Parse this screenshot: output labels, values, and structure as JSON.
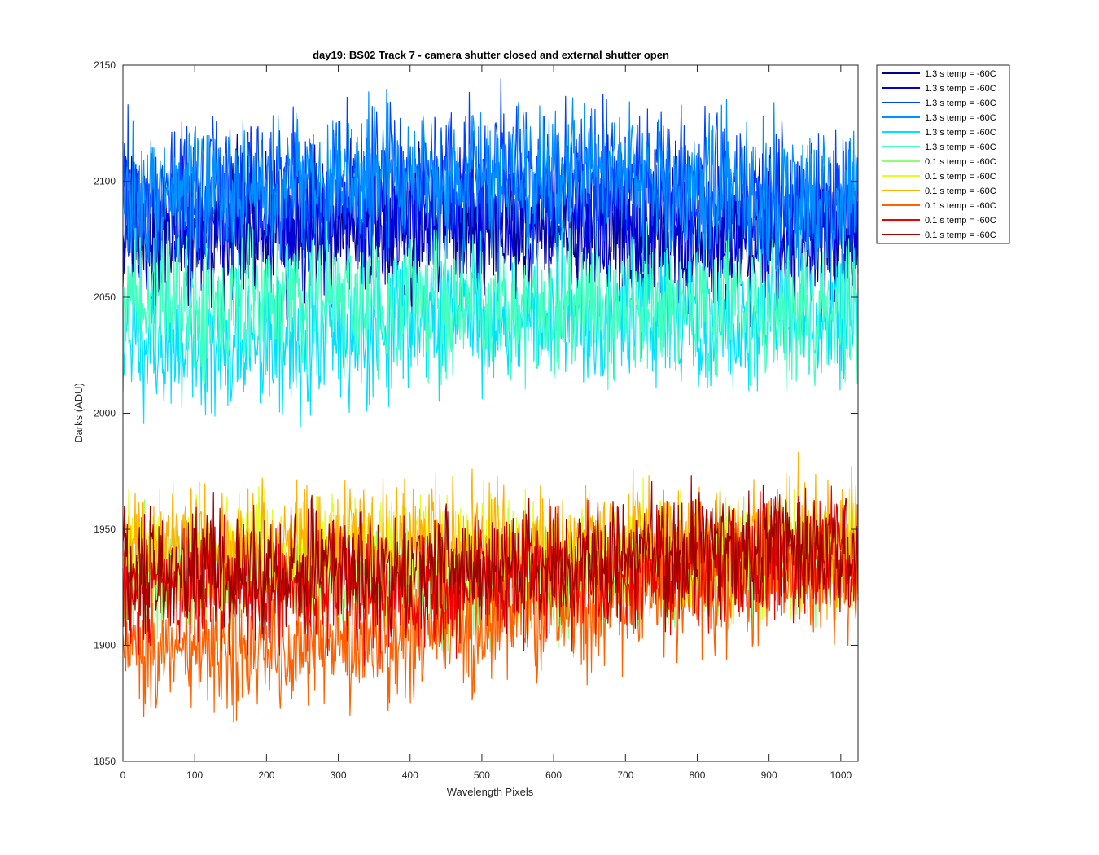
{
  "chart_data": {
    "type": "line",
    "title": "day19: BS02  Track 7 - camera shutter closed and external shutter open",
    "xlabel": "Wavelength Pixels",
    "ylabel": "Darks (ADU)",
    "xlim": [
      0,
      1024
    ],
    "ylim": [
      1850,
      2150
    ],
    "xticks": [
      0,
      100,
      200,
      300,
      400,
      500,
      600,
      700,
      800,
      900,
      1000
    ],
    "yticks": [
      1850,
      1900,
      1950,
      2000,
      2050,
      2100,
      2150
    ],
    "grid": false,
    "legend_position": "outside-top-right",
    "n_points": 1024,
    "series": [
      {
        "name": "1.3 s temp = -60C",
        "color": "#00008F",
        "mean": 2075,
        "amplitude": 45,
        "trend": [
          2075,
          2080,
          2082,
          2078,
          2076,
          2074
        ]
      },
      {
        "name": "1.3 s temp = -60C",
        "color": "#0000DF",
        "mean": 2080,
        "amplitude": 45,
        "trend": [
          2078,
          2084,
          2086,
          2086,
          2080,
          2078
        ]
      },
      {
        "name": "1.3 s temp = -60C",
        "color": "#0040FF",
        "mean": 2090,
        "amplitude": 45,
        "trend": [
          2090,
          2096,
          2100,
          2104,
          2096,
          2088
        ]
      },
      {
        "name": "1.3 s temp = -60C",
        "color": "#0090FF",
        "mean": 2092,
        "amplitude": 45,
        "trend": [
          2092,
          2098,
          2102,
          2104,
          2096,
          2090
        ]
      },
      {
        "name": "1.3 s temp = -60C",
        "color": "#00E0FF",
        "mean": 2040,
        "amplitude": 45,
        "trend": [
          2030,
          2028,
          2040,
          2044,
          2040,
          2038
        ]
      },
      {
        "name": "1.3 s temp = -60C",
        "color": "#40FFBF",
        "mean": 2045,
        "amplitude": 45,
        "trend": [
          2050,
          2052,
          2046,
          2044,
          2046,
          2046
        ]
      },
      {
        "name": "0.1 s temp = -60C",
        "color": "#90FF70",
        "mean": 1930,
        "amplitude": 38,
        "trend": [
          1930,
          1928,
          1924,
          1928,
          1934,
          1938
        ]
      },
      {
        "name": "0.1 s temp = -60C",
        "color": "#E0FF20",
        "mean": 1935,
        "amplitude": 38,
        "trend": [
          1942,
          1940,
          1942,
          1938,
          1938,
          1940
        ]
      },
      {
        "name": "0.1 s temp = -60C",
        "color": "#FFB000",
        "mean": 1940,
        "amplitude": 38,
        "trend": [
          1942,
          1938,
          1944,
          1940,
          1944,
          1948
        ]
      },
      {
        "name": "0.1 s temp = -60C",
        "color": "#FF6000",
        "mean": 1910,
        "amplitude": 38,
        "trend": [
          1900,
          1896,
          1904,
          1916,
          1924,
          1932
        ]
      },
      {
        "name": "0.1 s temp = -60C",
        "color": "#EF0000",
        "mean": 1928,
        "amplitude": 38,
        "trend": [
          1926,
          1924,
          1926,
          1930,
          1934,
          1938
        ]
      },
      {
        "name": "0.1 s temp = -60C",
        "color": "#9F0000",
        "mean": 1935,
        "amplitude": 38,
        "trend": [
          1932,
          1932,
          1934,
          1936,
          1940,
          1942
        ]
      }
    ]
  }
}
